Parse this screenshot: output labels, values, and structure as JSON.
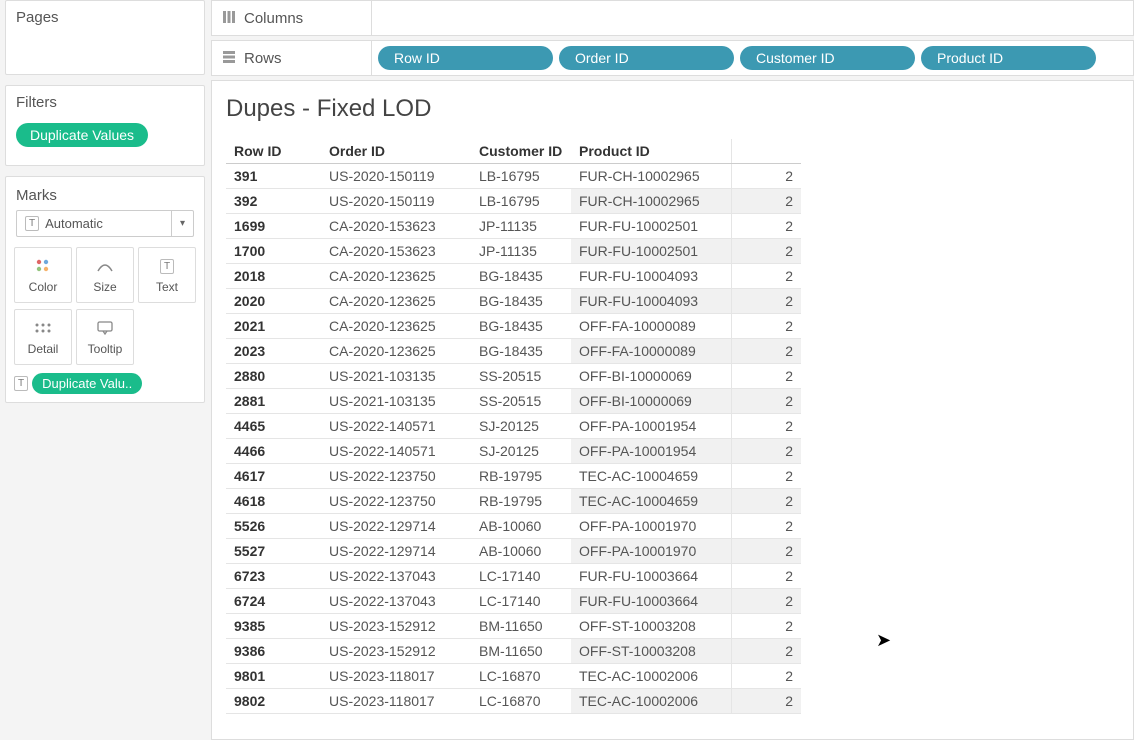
{
  "sidebar": {
    "pages_label": "Pages",
    "filters_label": "Filters",
    "filter_pill": "Duplicate Values",
    "marks_label": "Marks",
    "marks_select": "Automatic",
    "marks_buttons": [
      {
        "label": "Color"
      },
      {
        "label": "Size"
      },
      {
        "label": "Text"
      },
      {
        "label": "Detail"
      },
      {
        "label": "Tooltip"
      }
    ],
    "marks_pill": "Duplicate Valu.."
  },
  "shelves": {
    "columns_label": "Columns",
    "rows_label": "Rows",
    "rows_pills": [
      "Row ID",
      "Order ID",
      "Customer ID",
      "Product ID"
    ]
  },
  "viz": {
    "title": "Dupes - Fixed LOD",
    "columns": [
      "Row ID",
      "Order ID",
      "Customer ID",
      "Product ID",
      ""
    ],
    "rows": [
      [
        "391",
        "US-2020-150119",
        "LB-16795",
        "FUR-CH-10002965",
        "2"
      ],
      [
        "392",
        "US-2020-150119",
        "LB-16795",
        "FUR-CH-10002965",
        "2"
      ],
      [
        "1699",
        "CA-2020-153623",
        "JP-11135",
        "FUR-FU-10002501",
        "2"
      ],
      [
        "1700",
        "CA-2020-153623",
        "JP-11135",
        "FUR-FU-10002501",
        "2"
      ],
      [
        "2018",
        "CA-2020-123625",
        "BG-18435",
        "FUR-FU-10004093",
        "2"
      ],
      [
        "2020",
        "CA-2020-123625",
        "BG-18435",
        "FUR-FU-10004093",
        "2"
      ],
      [
        "2021",
        "CA-2020-123625",
        "BG-18435",
        "OFF-FA-10000089",
        "2"
      ],
      [
        "2023",
        "CA-2020-123625",
        "BG-18435",
        "OFF-FA-10000089",
        "2"
      ],
      [
        "2880",
        "US-2021-103135",
        "SS-20515",
        "OFF-BI-10000069",
        "2"
      ],
      [
        "2881",
        "US-2021-103135",
        "SS-20515",
        "OFF-BI-10000069",
        "2"
      ],
      [
        "4465",
        "US-2022-140571",
        "SJ-20125",
        "OFF-PA-10001954",
        "2"
      ],
      [
        "4466",
        "US-2022-140571",
        "SJ-20125",
        "OFF-PA-10001954",
        "2"
      ],
      [
        "4617",
        "US-2022-123750",
        "RB-19795",
        "TEC-AC-10004659",
        "2"
      ],
      [
        "4618",
        "US-2022-123750",
        "RB-19795",
        "TEC-AC-10004659",
        "2"
      ],
      [
        "5526",
        "US-2022-129714",
        "AB-10060",
        "OFF-PA-10001970",
        "2"
      ],
      [
        "5527",
        "US-2022-129714",
        "AB-10060",
        "OFF-PA-10001970",
        "2"
      ],
      [
        "6723",
        "US-2022-137043",
        "LC-17140",
        "FUR-FU-10003664",
        "2"
      ],
      [
        "6724",
        "US-2022-137043",
        "LC-17140",
        "FUR-FU-10003664",
        "2"
      ],
      [
        "9385",
        "US-2023-152912",
        "BM-11650",
        "OFF-ST-10003208",
        "2"
      ],
      [
        "9386",
        "US-2023-152912",
        "BM-11650",
        "OFF-ST-10003208",
        "2"
      ],
      [
        "9801",
        "US-2023-118017",
        "LC-16870",
        "TEC-AC-10002006",
        "2"
      ],
      [
        "9802",
        "US-2023-118017",
        "LC-16870",
        "TEC-AC-10002006",
        "2"
      ]
    ]
  },
  "colors": {
    "pill_green": "#1abc8b",
    "pill_blue": "#3c99b2",
    "bg": "#f4f4f4"
  }
}
